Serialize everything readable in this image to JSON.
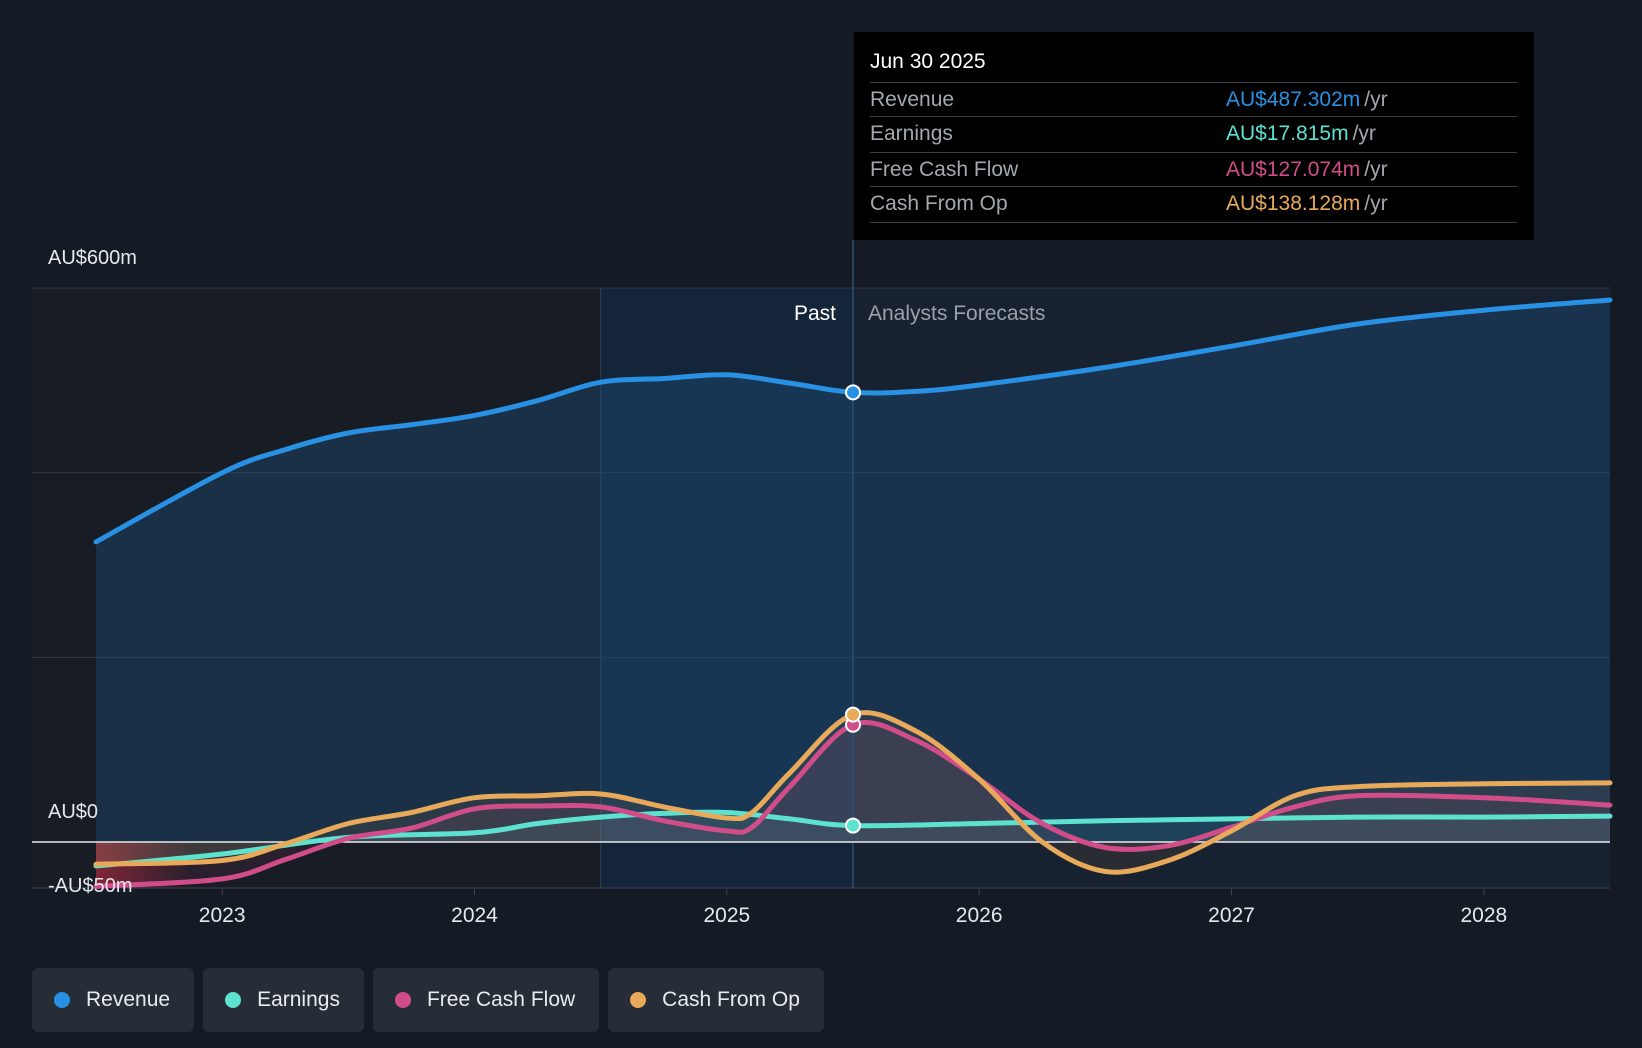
{
  "chart_data": {
    "type": "area",
    "currency_unit": "AU$",
    "y_axis_labels": [
      "AU$600m",
      "AU$0",
      "-AU$50m"
    ],
    "ylim": [
      -50,
      600
    ],
    "x_ticks": [
      "2023",
      "2024",
      "2025",
      "2026",
      "2027",
      "2028"
    ],
    "x_tick_values": [
      2023,
      2024,
      2025,
      2026,
      2027,
      2028
    ],
    "xlim": [
      2022.5,
      2028.5
    ],
    "past_label": "Past",
    "forecast_label": "Analysts Forecasts",
    "divider_x": 2025.5,
    "shaded_window_start": 2024.5,
    "series": [
      {
        "name": "Revenue",
        "color": "#2891e3",
        "x": [
          2022.5,
          2023,
          2023.25,
          2023.5,
          2023.75,
          2024,
          2024.25,
          2024.5,
          2024.75,
          2025,
          2025.25,
          2025.5,
          2025.75,
          2026,
          2026.5,
          2027,
          2027.5,
          2028,
          2028.5
        ],
        "values": [
          325,
          400,
          425,
          443,
          452,
          462,
          478,
          498,
          502,
          506,
          497,
          487,
          488,
          495,
          514,
          537,
          561,
          576,
          587
        ]
      },
      {
        "name": "Earnings",
        "color": "#5de2cf",
        "x": [
          2022.5,
          2023,
          2023.5,
          2024,
          2024.25,
          2024.5,
          2024.75,
          2025,
          2025.25,
          2025.5,
          2026,
          2026.5,
          2027,
          2027.5,
          2028,
          2028.5
        ],
        "values": [
          -26,
          -13,
          5,
          10,
          20,
          27,
          31,
          32,
          25,
          17.8,
          20,
          23,
          25,
          27,
          27,
          28
        ]
      },
      {
        "name": "Free Cash Flow",
        "color": "#d04d8a",
        "x": [
          2022.5,
          2023,
          2023.25,
          2023.5,
          2023.75,
          2024,
          2024.25,
          2024.5,
          2024.75,
          2025,
          2025.1,
          2025.25,
          2025.5,
          2025.75,
          2026,
          2026.25,
          2026.5,
          2026.75,
          2027,
          2027.25,
          2027.5,
          2028,
          2028.5
        ],
        "values": [
          -48,
          -40,
          -19,
          4,
          15,
          36,
          39,
          38,
          23,
          12,
          16,
          60,
          127,
          110,
          68,
          20,
          -6,
          -4,
          16,
          38,
          50,
          48,
          40
        ]
      },
      {
        "name": "Cash From Op",
        "color": "#e8aa5a",
        "x": [
          2022.5,
          2023,
          2023.25,
          2023.5,
          2023.75,
          2024,
          2024.25,
          2024.5,
          2024.75,
          2025,
          2025.1,
          2025.25,
          2025.5,
          2025.75,
          2026,
          2026.25,
          2026.5,
          2026.75,
          2027,
          2027.25,
          2027.5,
          2028,
          2028.5
        ],
        "values": [
          -24,
          -20,
          -2,
          20,
          32,
          48,
          50,
          52,
          38,
          26,
          32,
          75,
          138,
          120,
          68,
          0,
          -32,
          -20,
          12,
          50,
          60,
          63,
          64
        ]
      }
    ],
    "highlight": {
      "x": 2025.5,
      "date": "Jun 30 2025",
      "rows": [
        {
          "label": "Revenue",
          "value": "AU$487.302m",
          "unit": "/yr",
          "color": "#2891e3"
        },
        {
          "label": "Earnings",
          "value": "AU$17.815m",
          "unit": "/yr",
          "color": "#5de2cf"
        },
        {
          "label": "Free Cash Flow",
          "value": "AU$127.074m",
          "unit": "/yr",
          "color": "#d04d8a"
        },
        {
          "label": "Cash From Op",
          "value": "AU$138.128m",
          "unit": "/yr",
          "color": "#e8aa5a"
        }
      ]
    },
    "legend": [
      {
        "name": "Revenue",
        "color": "#2891e3"
      },
      {
        "name": "Earnings",
        "color": "#5de2cf"
      },
      {
        "name": "Free Cash Flow",
        "color": "#d04d8a"
      },
      {
        "name": "Cash From Op",
        "color": "#e8aa5a"
      }
    ]
  }
}
